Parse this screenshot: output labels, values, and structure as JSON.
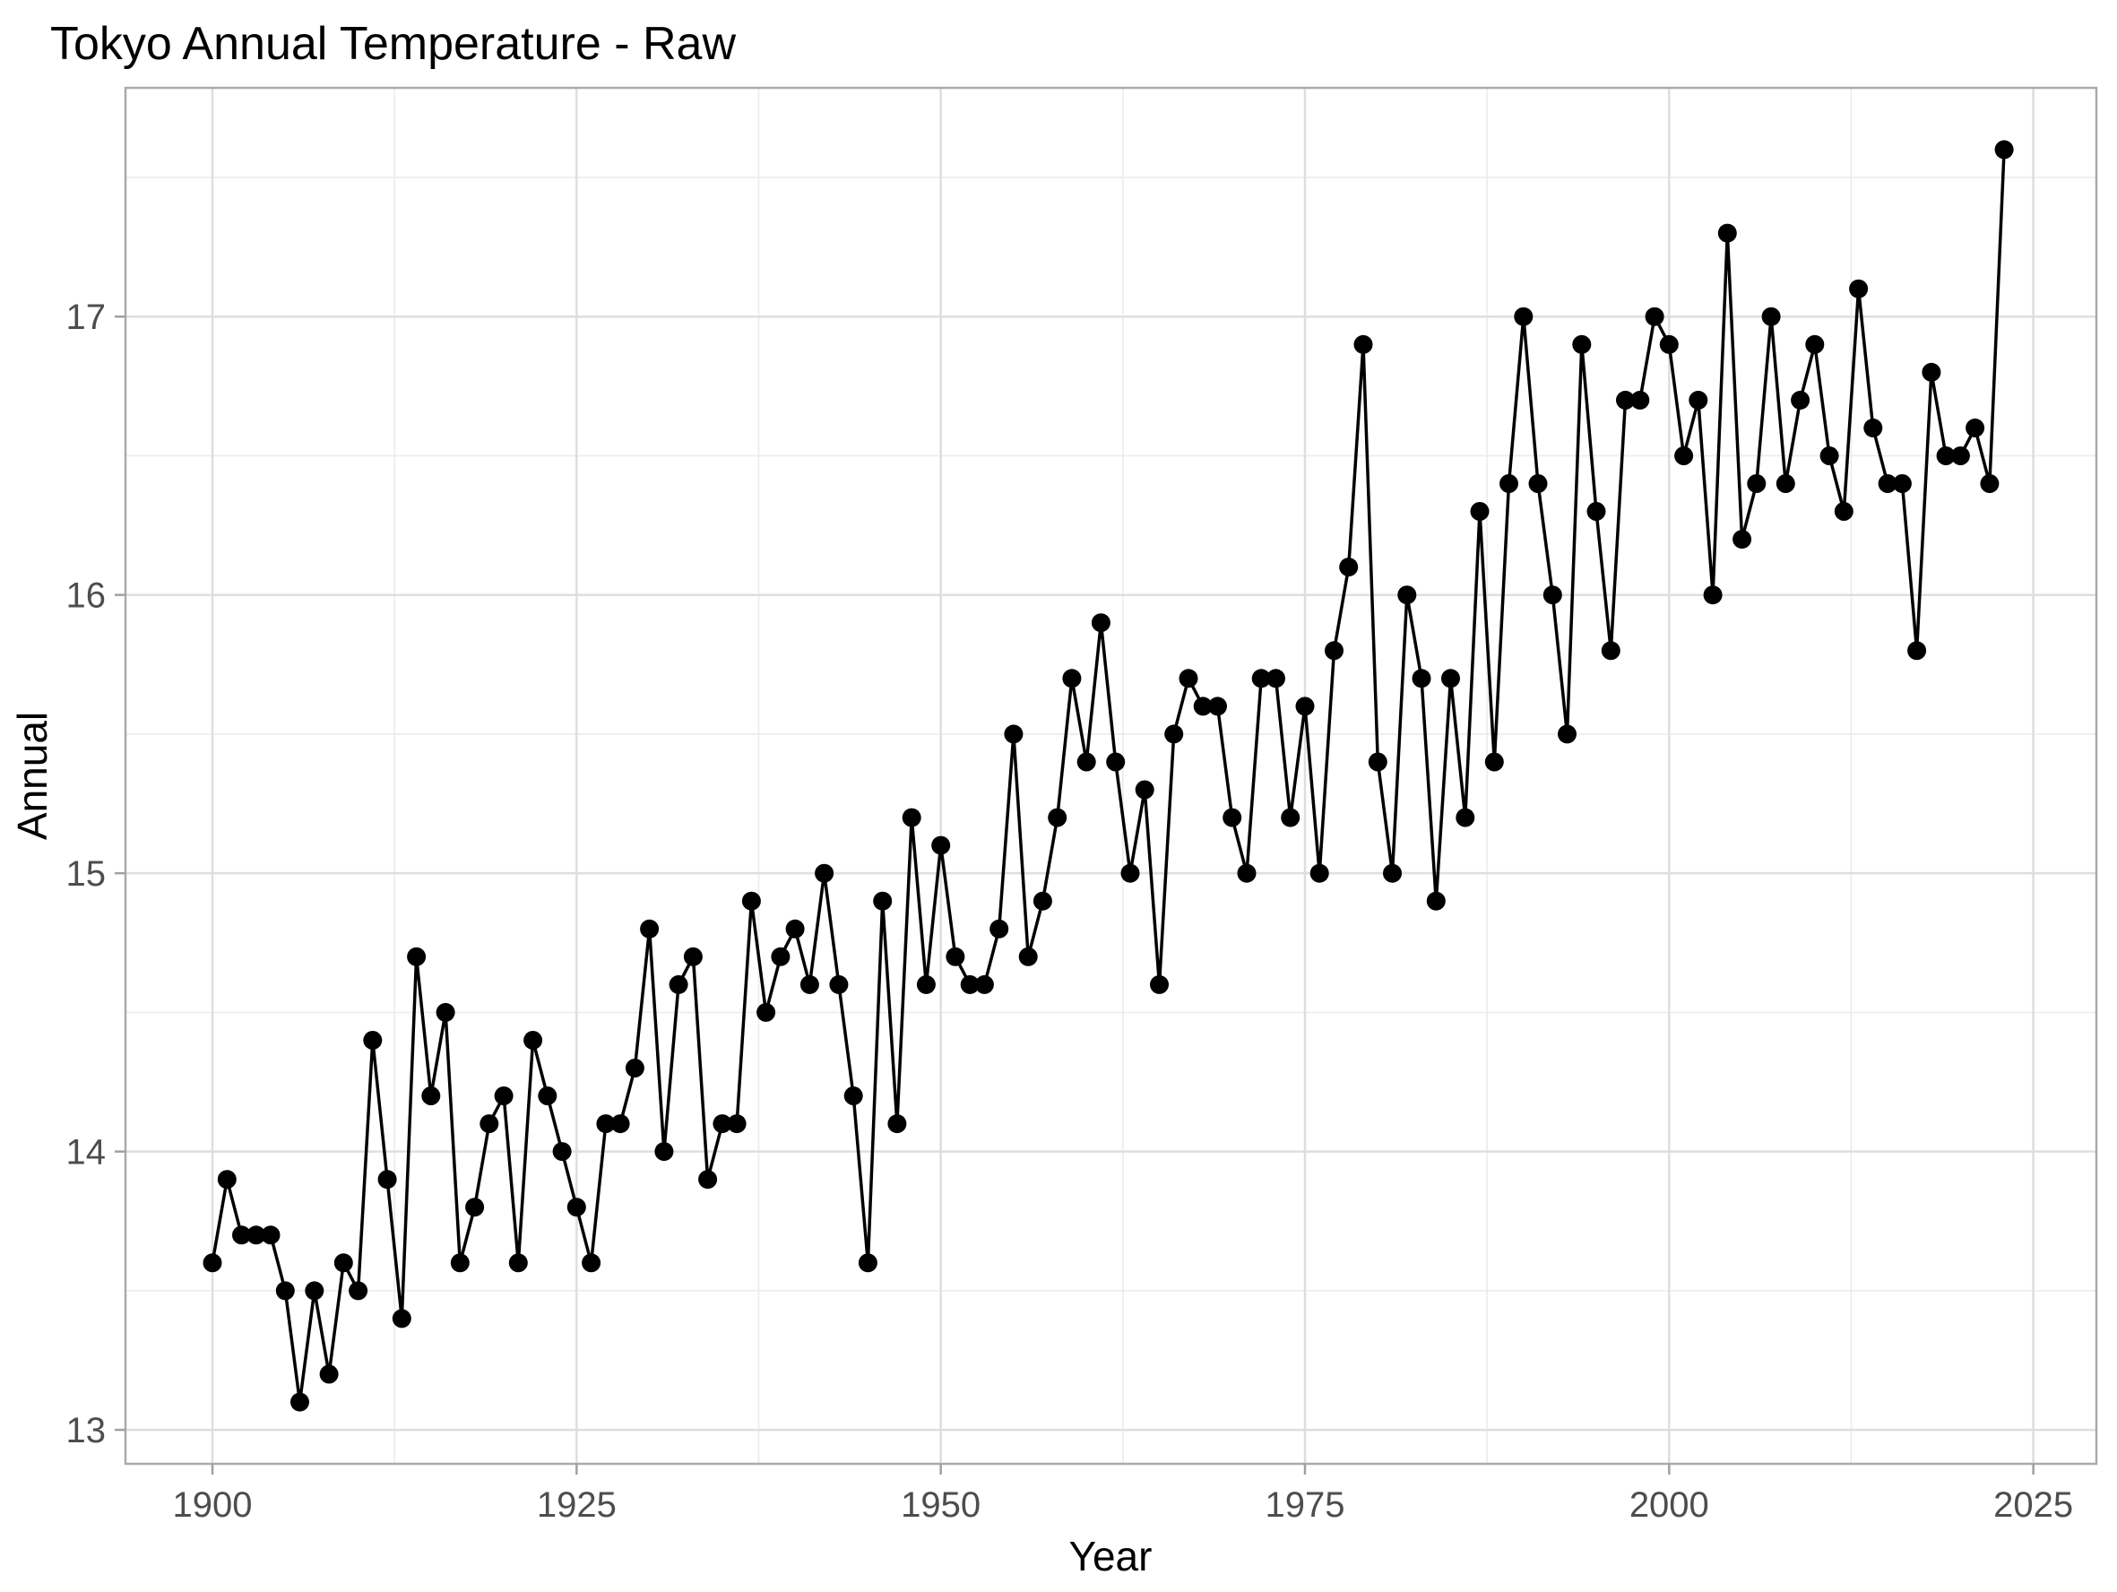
{
  "page": {
    "background": "#FFFFFF"
  },
  "chart_data": {
    "type": "line",
    "title": "Tokyo Annual Temperature - Raw",
    "xlabel": "Year",
    "ylabel": "Annual",
    "legend": "none",
    "grid": "on",
    "xlim": [
      1894.03,
      2029.33
    ],
    "ylim": [
      12.878,
      17.822
    ],
    "x_ticks": [
      1900,
      1925,
      1950,
      1975,
      2000,
      2025
    ],
    "y_ticks": [
      13,
      14,
      15,
      16,
      17
    ],
    "x_minor_gridlines": [
      1912.5,
      1937.5,
      1962.5,
      1987.5,
      2012.5
    ],
    "y_minor_gridlines": [
      13.5,
      14.5,
      15.5,
      16.5,
      17.5
    ],
    "series": [
      {
        "name": "Annual",
        "x": [
          1900,
          1901,
          1902,
          1903,
          1904,
          1905,
          1906,
          1907,
          1908,
          1909,
          1910,
          1911,
          1912,
          1913,
          1914,
          1915,
          1916,
          1917,
          1918,
          1919,
          1920,
          1921,
          1922,
          1923,
          1924,
          1925,
          1926,
          1927,
          1928,
          1929,
          1930,
          1931,
          1932,
          1933,
          1934,
          1935,
          1936,
          1937,
          1938,
          1939,
          1940,
          1941,
          1942,
          1943,
          1944,
          1945,
          1946,
          1947,
          1948,
          1949,
          1950,
          1951,
          1952,
          1953,
          1954,
          1955,
          1956,
          1957,
          1958,
          1959,
          1960,
          1961,
          1962,
          1963,
          1964,
          1965,
          1966,
          1967,
          1968,
          1969,
          1970,
          1971,
          1972,
          1973,
          1974,
          1975,
          1976,
          1977,
          1978,
          1979,
          1980,
          1981,
          1982,
          1983,
          1984,
          1985,
          1986,
          1987,
          1988,
          1989,
          1990,
          1991,
          1992,
          1993,
          1994,
          1995,
          1996,
          1997,
          1998,
          1999,
          2000,
          2001,
          2002,
          2003,
          2004,
          2005,
          2006,
          2007,
          2008,
          2009,
          2010,
          2011,
          2012,
          2013,
          2014,
          2015,
          2016,
          2017,
          2018,
          2019,
          2020,
          2021,
          2022,
          2023
        ],
        "y": [
          13.6,
          13.9,
          13.7,
          13.7,
          13.7,
          13.5,
          13.1,
          13.5,
          13.2,
          13.6,
          13.5,
          14.4,
          13.9,
          13.4,
          14.7,
          14.2,
          14.5,
          13.6,
          13.8,
          14.1,
          14.2,
          13.6,
          14.4,
          14.2,
          14.0,
          13.8,
          13.6,
          14.1,
          14.1,
          14.3,
          14.8,
          14.0,
          14.6,
          14.7,
          13.9,
          14.1,
          14.1,
          14.9,
          14.5,
          14.7,
          14.8,
          14.6,
          15.0,
          14.6,
          14.2,
          13.6,
          14.9,
          14.1,
          15.2,
          14.6,
          15.1,
          14.7,
          14.6,
          14.6,
          14.8,
          15.5,
          14.7,
          14.9,
          15.2,
          15.7,
          15.4,
          15.9,
          15.4,
          15.0,
          15.3,
          14.6,
          15.5,
          15.7,
          15.6,
          15.6,
          15.2,
          15.0,
          15.7,
          15.7,
          15.2,
          15.6,
          15.0,
          15.8,
          16.1,
          16.9,
          15.4,
          15.0,
          16.0,
          15.7,
          14.9,
          15.7,
          15.2,
          16.3,
          15.4,
          16.4,
          17.0,
          16.4,
          16.0,
          15.5,
          16.9,
          16.3,
          15.8,
          16.7,
          16.7,
          17.0,
          16.9,
          16.5,
          16.7,
          16.0,
          17.3,
          16.2,
          16.4,
          17.0,
          16.4,
          16.7,
          16.9,
          16.5,
          16.3,
          17.1,
          16.6,
          16.4,
          16.4,
          15.8,
          16.8,
          16.5,
          16.5,
          16.6,
          16.4,
          17.6
        ]
      }
    ],
    "colors": {
      "line": "#000000",
      "point": "#000000",
      "panel_background": "#FFFFFF",
      "panel_border": "#AAAAAA",
      "major_grid": "#DEDEDE",
      "minor_grid": "#ECECEC",
      "tick_mark": "#A0A0A0",
      "axis_text": "#4D4D4D",
      "title_text": "#000000"
    }
  }
}
